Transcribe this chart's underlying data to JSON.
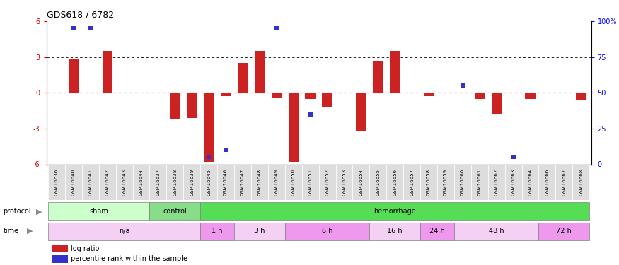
{
  "title": "GDS618 / 6782",
  "samples": [
    "GSM16636",
    "GSM16640",
    "GSM16641",
    "GSM16642",
    "GSM16643",
    "GSM16644",
    "GSM16637",
    "GSM16638",
    "GSM16639",
    "GSM16645",
    "GSM16646",
    "GSM16647",
    "GSM16648",
    "GSM16649",
    "GSM16650",
    "GSM16651",
    "GSM16652",
    "GSM16653",
    "GSM16654",
    "GSM16655",
    "GSM16656",
    "GSM16657",
    "GSM16658",
    "GSM16659",
    "GSM16660",
    "GSM16661",
    "GSM16662",
    "GSM16663",
    "GSM16664",
    "GSM16666",
    "GSM16667",
    "GSM16668"
  ],
  "log_ratio": [
    0.0,
    2.8,
    0.0,
    3.5,
    0.0,
    0.0,
    0.0,
    -2.2,
    -2.1,
    -5.8,
    -0.3,
    2.5,
    3.5,
    -0.4,
    -5.8,
    -0.5,
    -1.2,
    0.0,
    -3.2,
    2.7,
    3.5,
    0.0,
    -0.3,
    0.0,
    0.0,
    -0.5,
    -1.8,
    0.0,
    -0.5,
    0.0,
    0.0,
    -0.6
  ],
  "percentile_rank": [
    null,
    95,
    95,
    null,
    null,
    null,
    null,
    null,
    null,
    5,
    10,
    null,
    null,
    95,
    null,
    35,
    null,
    null,
    null,
    null,
    null,
    null,
    null,
    null,
    55,
    null,
    null,
    5,
    null,
    null,
    null,
    null
  ],
  "ylim_left": [
    -6,
    6
  ],
  "ylim_right": [
    0,
    100
  ],
  "yticks_left": [
    -6,
    -3,
    0,
    3,
    6
  ],
  "yticks_right": [
    0,
    25,
    50,
    75,
    100
  ],
  "bar_color": "#CC2222",
  "dot_color": "#3333CC",
  "zero_line_color": "#CC0000",
  "ytick_color": "#CC0000",
  "protocol_groups": [
    {
      "label": "sham",
      "start": 0,
      "end": 5,
      "color": "#CCFFCC"
    },
    {
      "label": "control",
      "start": 6,
      "end": 8,
      "color": "#88DD88"
    },
    {
      "label": "hemorrhage",
      "start": 9,
      "end": 31,
      "color": "#55DD55"
    }
  ],
  "time_groups": [
    {
      "label": "n/a",
      "start": 0,
      "end": 8,
      "color": "#F5D0F5"
    },
    {
      "label": "1 h",
      "start": 9,
      "end": 10,
      "color": "#EE99EE"
    },
    {
      "label": "3 h",
      "start": 11,
      "end": 13,
      "color": "#F5D0F5"
    },
    {
      "label": "6 h",
      "start": 14,
      "end": 18,
      "color": "#EE99EE"
    },
    {
      "label": "16 h",
      "start": 19,
      "end": 21,
      "color": "#F5D0F5"
    },
    {
      "label": "24 h",
      "start": 22,
      "end": 23,
      "color": "#EE99EE"
    },
    {
      "label": "48 h",
      "start": 24,
      "end": 28,
      "color": "#F5D0F5"
    },
    {
      "label": "72 h",
      "start": 29,
      "end": 31,
      "color": "#EE99EE"
    }
  ],
  "legend_items": [
    {
      "label": "log ratio",
      "color": "#CC2222"
    },
    {
      "label": "percentile rank within the sample",
      "color": "#3333CC"
    }
  ],
  "bg_color": "#FFFFFF",
  "sample_box_color": "#DDDDDD",
  "left_label_color": "#555555"
}
